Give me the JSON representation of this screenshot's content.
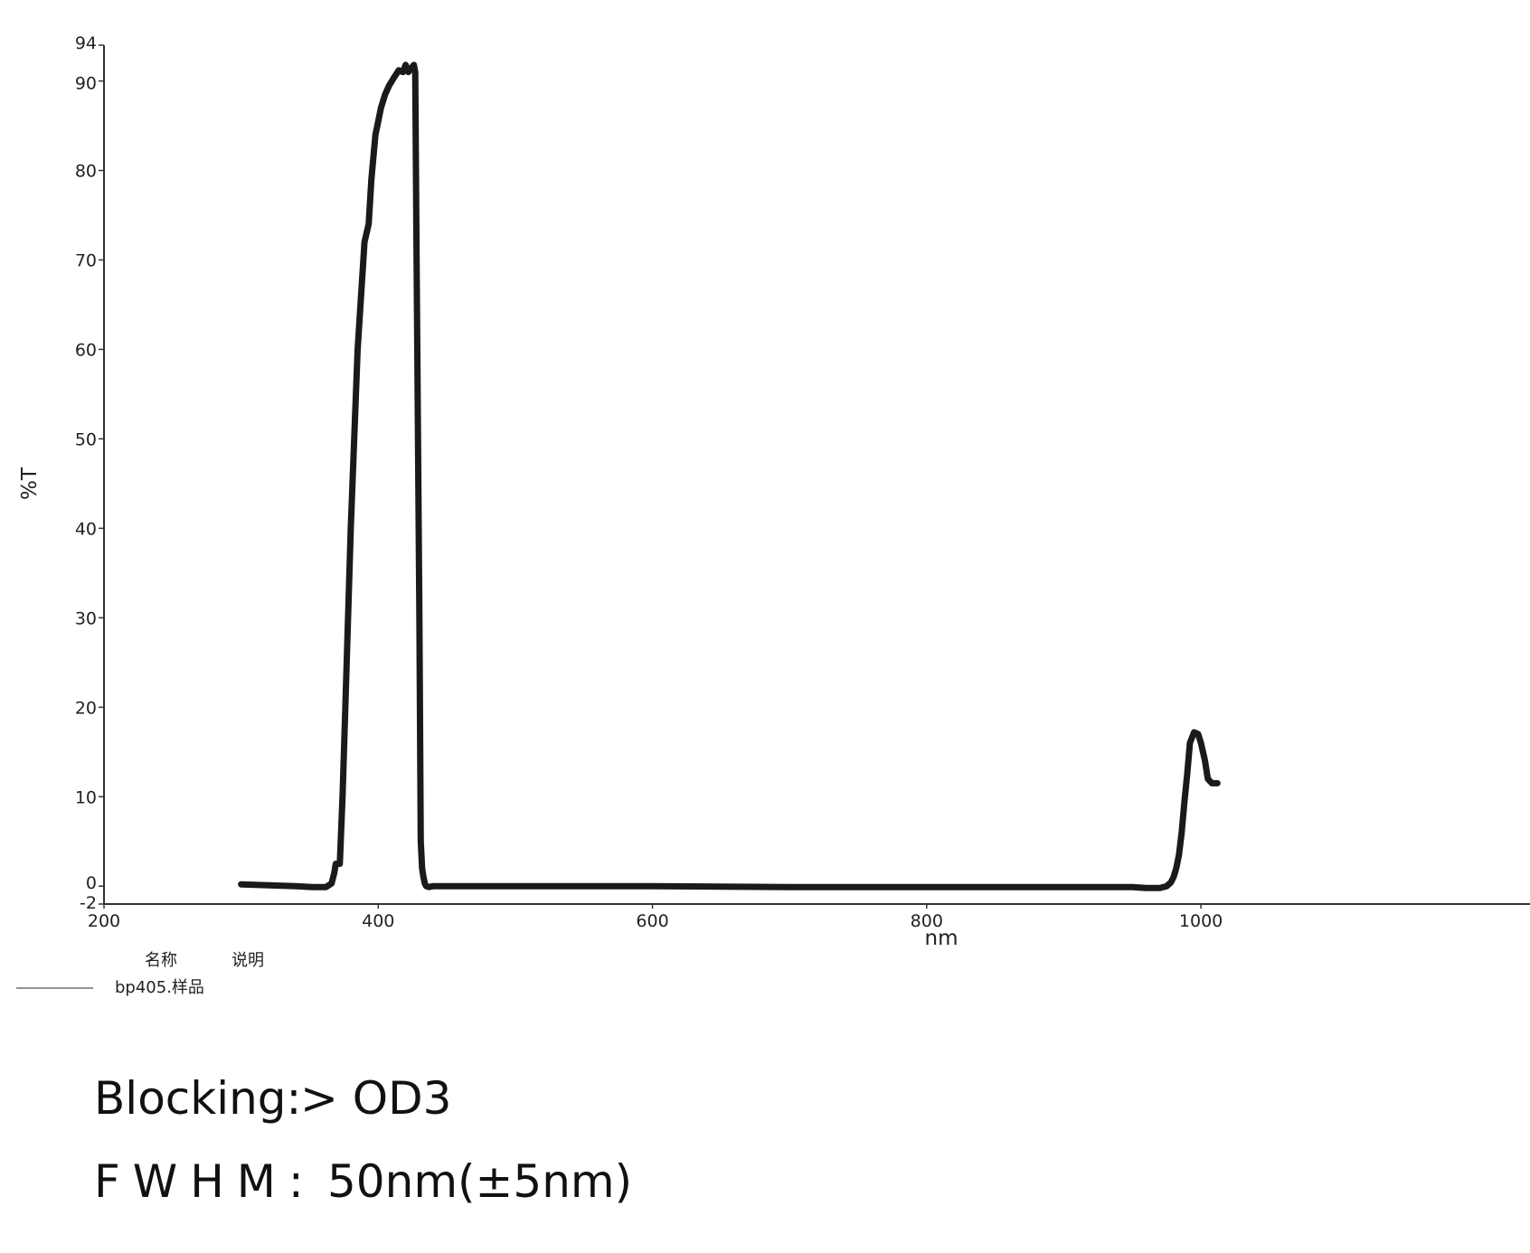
{
  "chart_data": {
    "type": "line",
    "xlabel": "nm",
    "ylabel": "%T",
    "xlim": [
      200,
      1240
    ],
    "ylim": [
      -2,
      94
    ],
    "x_ticks": [
      {
        "value": 200,
        "label": "200"
      },
      {
        "value": 400,
        "label": "400"
      },
      {
        "value": 600,
        "label": "600"
      },
      {
        "value": 800,
        "label": "800"
      },
      {
        "value": 1000,
        "label": "1000"
      }
    ],
    "y_ticks": [
      {
        "value": 94,
        "label": "94"
      },
      {
        "value": 90,
        "label": "90"
      },
      {
        "value": 80,
        "label": "80"
      },
      {
        "value": 70,
        "label": "70"
      },
      {
        "value": 60,
        "label": "60"
      },
      {
        "value": 50,
        "label": "50"
      },
      {
        "value": 40,
        "label": "40"
      },
      {
        "value": 30,
        "label": "30"
      },
      {
        "value": 20,
        "label": "20"
      },
      {
        "value": 10,
        "label": "10"
      },
      {
        "value": 0,
        "label": "0"
      },
      {
        "value": -2,
        "label": "-2"
      }
    ],
    "grid": false,
    "line_color": "#1a1a1a",
    "legend": {
      "position": "bottom-left",
      "column_headers": [
        "名称",
        "说明"
      ],
      "entries": [
        {
          "name": "bp405.样品",
          "description": ""
        }
      ]
    },
    "series": [
      {
        "name": "bp405.样品",
        "x": [
          300,
          320,
          340,
          352,
          362,
          366,
          368,
          369,
          372,
          374,
          376,
          380,
          385,
          390,
          393,
          395,
          398,
          400,
          402,
          405,
          408,
          412,
          415,
          418,
          420,
          422,
          424,
          426,
          427,
          428,
          430,
          431,
          432,
          433,
          434,
          435,
          437,
          440,
          445,
          450,
          500,
          600,
          700,
          800,
          900,
          950,
          960,
          965,
          970,
          975,
          978,
          980,
          982,
          984,
          986,
          988,
          990,
          992,
          995,
          998,
          1000,
          1003,
          1005,
          1008,
          1010,
          1012
        ],
        "y": [
          0.2,
          0.1,
          0.0,
          -0.1,
          -0.1,
          0.3,
          1.5,
          2.5,
          2.5,
          10,
          20,
          40,
          60,
          72,
          74,
          79,
          84,
          85.5,
          87,
          88.5,
          89.5,
          90.5,
          91.2,
          91.0,
          91.8,
          91.0,
          91.4,
          91.8,
          91.0,
          70,
          30,
          5,
          2.0,
          1.0,
          0.3,
          0.0,
          -0.1,
          0.0,
          0.0,
          0.0,
          0.0,
          0.0,
          -0.1,
          -0.1,
          -0.1,
          -0.1,
          -0.2,
          -0.2,
          -0.2,
          0.0,
          0.4,
          1.0,
          2.0,
          3.5,
          6.0,
          9.5,
          12.5,
          16.0,
          17.2,
          17.0,
          16.0,
          14.0,
          12.0,
          11.5,
          11.5,
          11.5
        ]
      }
    ]
  },
  "specs": {
    "blocking_label": "Blocking:",
    "blocking_value": "> OD3",
    "fwhm_label": "FWHM:",
    "fwhm_value": "50nm(±5nm)"
  }
}
